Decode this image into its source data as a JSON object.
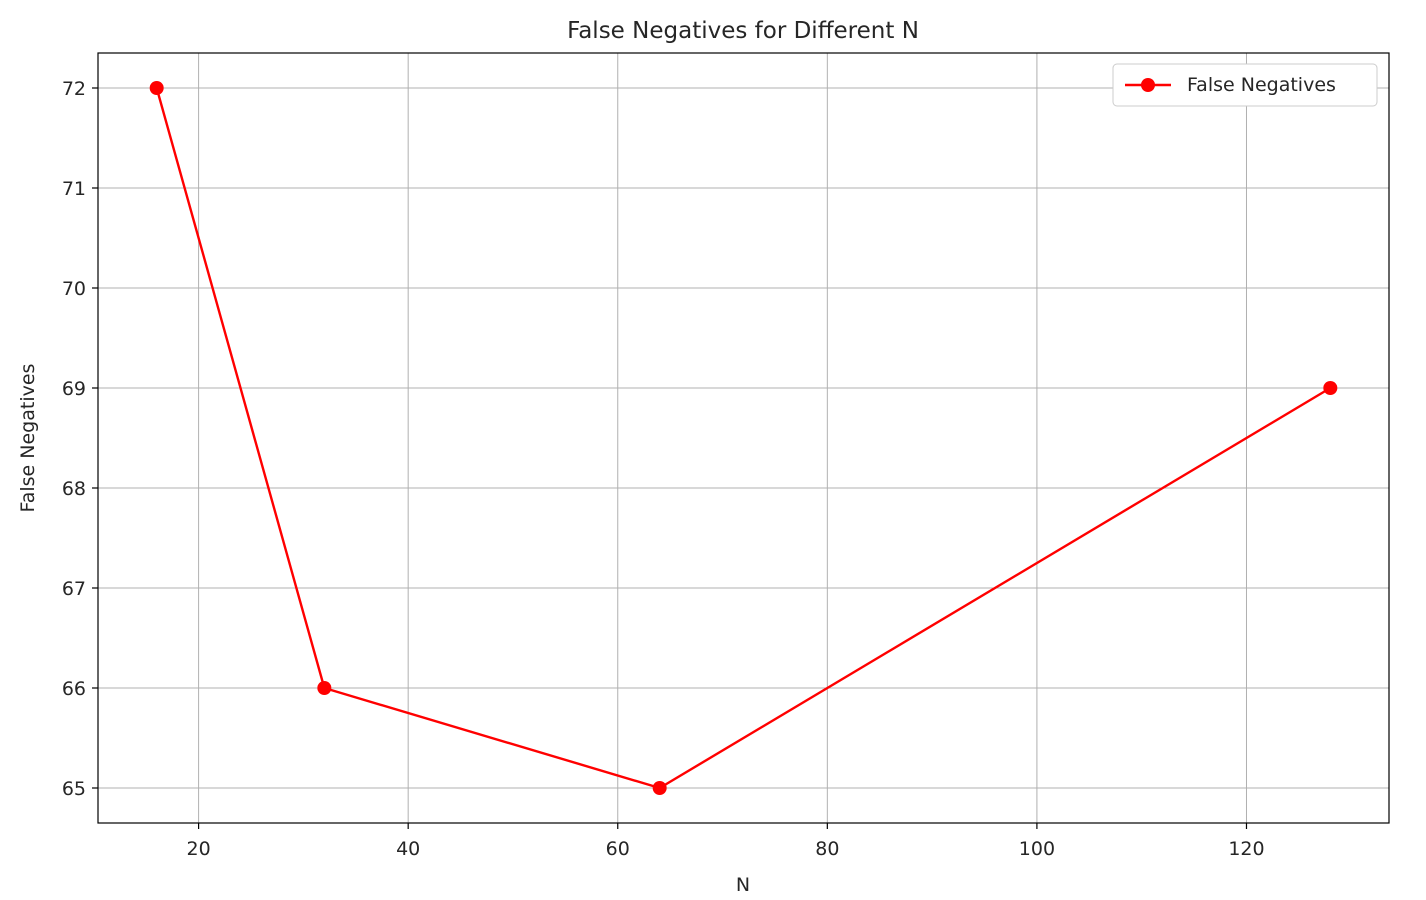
{
  "chart_data": {
    "type": "line",
    "title": "False Negatives for Different N",
    "xlabel": "N",
    "ylabel": "False Negatives",
    "x": [
      16,
      32,
      64,
      128
    ],
    "series": [
      {
        "name": "False Negatives",
        "values": [
          72,
          66,
          65,
          69
        ],
        "color": "#ff0000",
        "marker": "circle"
      }
    ],
    "xlim": [
      10.4,
      133.6
    ],
    "ylim": [
      64.65,
      72.35
    ],
    "x_ticks": [
      20,
      40,
      60,
      80,
      100,
      120
    ],
    "y_ticks": [
      65,
      66,
      67,
      68,
      69,
      70,
      71,
      72
    ],
    "grid": true,
    "legend_position": "top-right"
  }
}
